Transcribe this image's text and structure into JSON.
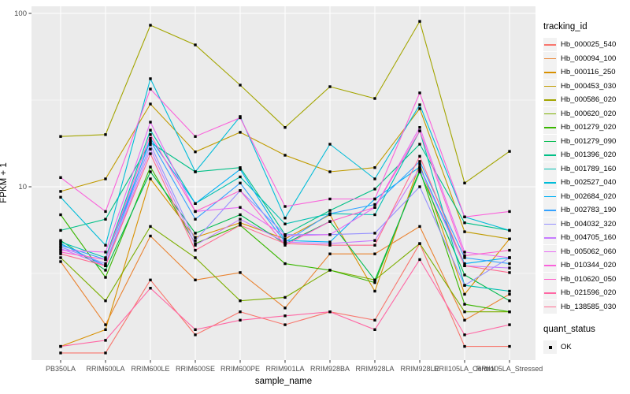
{
  "chart_data": {
    "type": "line",
    "title": "",
    "xlabel": "sample_name",
    "ylabel": "FPKM + 1",
    "y_scale": "log10",
    "ylim": [
      1,
      110
    ],
    "y_major_ticks": [
      10,
      100
    ],
    "y_tick_labels": [
      "10",
      "100"
    ],
    "y_minor_ticks": [
      3.162,
      31.62
    ],
    "grid": true,
    "panel_bg": "#EBEBEB",
    "grid_color": "#FFFFFF",
    "tick_color": "#333333",
    "tick_label_color": "#4D4D4D",
    "point_marker": "black-square",
    "point_color": "#000000",
    "legend_position": "right",
    "legend_title": "tracking_id",
    "categories": [
      "PB350LA",
      "RRIM600LA",
      "RRIM600LE",
      "RRIM600SE",
      "RRIM600PE",
      "RRIM901LA",
      "RRIM928BA",
      "RRIM928LA",
      "RRIM928LE",
      "RRII105LA_Control",
      "RRII105LA_Stressed"
    ],
    "series": [
      {
        "name": "Hb_000025_540",
        "color": "#F8766D",
        "values": [
          1.1,
          1.1,
          2.9,
          1.4,
          1.9,
          1.6,
          1.9,
          1.7,
          4.7,
          1.2,
          1.2
        ]
      },
      {
        "name": "Hb_000094_100",
        "color": "#EA8331",
        "values": [
          3.7,
          1.6,
          5.2,
          2.9,
          3.2,
          2.0,
          4.1,
          4.1,
          5.9,
          1.7,
          2.4
        ]
      },
      {
        "name": "Hb_000116_250",
        "color": "#D89000",
        "values": [
          1.2,
          1.5,
          11.1,
          5.1,
          6.2,
          5.0,
          6.9,
          2.5,
          13.5,
          2.4,
          5.0
        ]
      },
      {
        "name": "Hb_000453_030",
        "color": "#C09B00",
        "values": [
          9.4,
          11.1,
          30.0,
          15.9,
          20.6,
          15.2,
          12.2,
          12.9,
          28.2,
          5.5,
          5.0
        ]
      },
      {
        "name": "Hb_000586_020",
        "color": "#A3A500",
        "values": [
          19.5,
          20.0,
          85.5,
          65.8,
          38.6,
          22.0,
          37.8,
          32.3,
          90.0,
          10.5,
          16.0
        ]
      },
      {
        "name": "Hb_000620_020",
        "color": "#7CAE00",
        "values": [
          3.9,
          2.2,
          5.9,
          3.9,
          2.2,
          2.3,
          3.3,
          2.9,
          4.7,
          1.9,
          1.9
        ]
      },
      {
        "name": "Hb_001279_020",
        "color": "#39B600",
        "values": [
          6.9,
          3.0,
          13.0,
          4.7,
          6.0,
          3.6,
          3.3,
          2.8,
          12.5,
          2.1,
          1.9
        ]
      },
      {
        "name": "Hb_001279_090",
        "color": "#00BB4E",
        "values": [
          4.9,
          3.3,
          12.2,
          5.4,
          6.9,
          4.7,
          6.3,
          2.9,
          12.2,
          3.1,
          2.2
        ]
      },
      {
        "name": "Hb_001396_020",
        "color": "#00C087",
        "values": [
          5.6,
          6.5,
          18.0,
          12.2,
          12.9,
          5.3,
          7.3,
          9.7,
          17.6,
          6.2,
          5.6
        ]
      },
      {
        "name": "Hb_001789_160",
        "color": "#00C0B2",
        "values": [
          4.8,
          3.9,
          21.2,
          8.0,
          11.4,
          6.1,
          7.0,
          6.9,
          21.0,
          2.7,
          2.5
        ]
      },
      {
        "name": "Hb_002527_040",
        "color": "#00BCD8",
        "values": [
          8.7,
          4.6,
          42.0,
          12.2,
          25.4,
          6.6,
          17.6,
          11.1,
          29.7,
          6.7,
          5.6
        ]
      },
      {
        "name": "Hb_002684_020",
        "color": "#00B0F6",
        "values": [
          4.7,
          3.5,
          19.0,
          8.0,
          12.6,
          4.9,
          4.8,
          8.5,
          13.0,
          3.6,
          3.9
        ]
      },
      {
        "name": "Hb_002783_190",
        "color": "#35A2FF",
        "values": [
          4.6,
          3.8,
          18.5,
          6.5,
          10.5,
          4.8,
          7.0,
          7.9,
          14.0,
          3.9,
          3.6
        ]
      },
      {
        "name": "Hb_004032_320",
        "color": "#9590FF",
        "values": [
          4.5,
          3.6,
          17.5,
          4.9,
          9.5,
          5.3,
          5.3,
          5.4,
          10.0,
          2.7,
          3.9
        ]
      },
      {
        "name": "Hb_004705_160",
        "color": "#C77CFF",
        "values": [
          4.4,
          3.5,
          16.5,
          4.6,
          6.5,
          4.8,
          4.7,
          4.9,
          12.8,
          3.5,
          3.4
        ]
      },
      {
        "name": "Hb_005062_060",
        "color": "#E76BF3",
        "values": [
          4.3,
          4.2,
          23.6,
          7.2,
          7.6,
          5.2,
          5.3,
          7.6,
          22.0,
          4.2,
          3.9
        ]
      },
      {
        "name": "Hb_010344_020",
        "color": "#FA62DB",
        "values": [
          11.3,
          7.2,
          36.6,
          19.5,
          25.0,
          7.7,
          8.5,
          8.5,
          34.8,
          6.7,
          7.2
        ]
      },
      {
        "name": "Hb_010620_050",
        "color": "#FF61CC",
        "values": [
          4.2,
          3.8,
          20.0,
          7.2,
          9.5,
          4.6,
          6.3,
          7.6,
          21.0,
          4.0,
          4.3
        ]
      },
      {
        "name": "Hb_021596_020",
        "color": "#FF67A4",
        "values": [
          1.2,
          1.3,
          2.6,
          1.5,
          1.7,
          1.8,
          1.9,
          1.5,
          3.8,
          1.4,
          1.6
        ]
      },
      {
        "name": "Hb_138585_030",
        "color": "#FF6C91",
        "values": [
          4.1,
          3.5,
          15.5,
          4.3,
          6.0,
          4.7,
          4.6,
          4.6,
          15.0,
          3.5,
          3.2
        ]
      }
    ]
  },
  "quant_legend": {
    "title": "quant_status",
    "items": [
      {
        "label": "OK",
        "marker": "black-square",
        "color": "#000000"
      }
    ]
  },
  "layout_labels": {
    "ylabel": "FPKM + 1",
    "xlabel": "sample_name",
    "legend_title": "tracking_id"
  }
}
